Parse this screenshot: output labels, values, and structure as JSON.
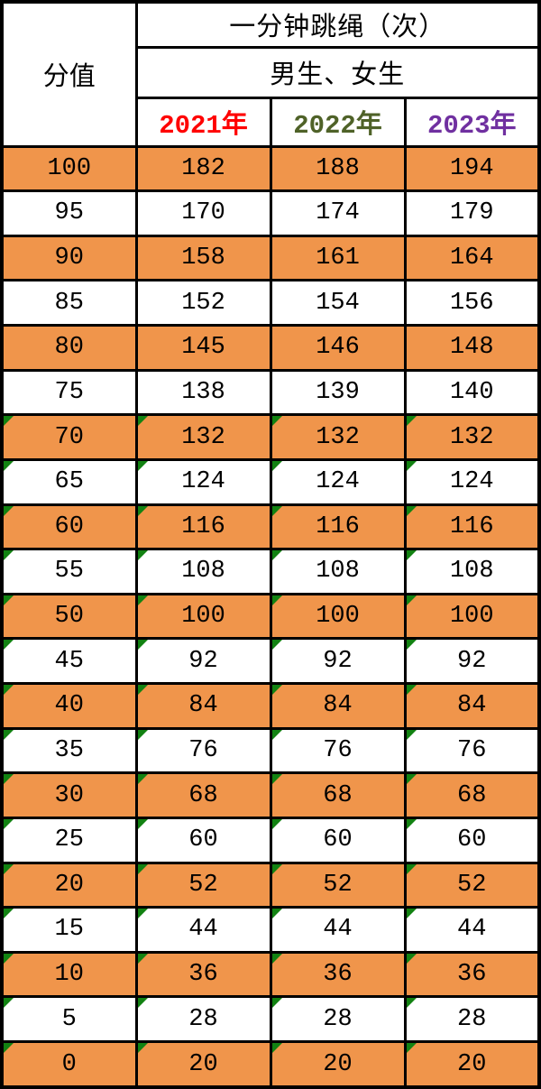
{
  "table": {
    "title": "一分钟跳绳（次）",
    "score_column_label": "分值",
    "gender_label": "男生、女生",
    "year_headers": [
      "2021年",
      "2022年",
      "2023年"
    ],
    "year_colors": [
      "#FF0000",
      "#4F6228",
      "#7030A0"
    ]
  },
  "colors": {
    "row_shaded": "#F0954B",
    "row_plain": "#FFFFFF",
    "border": "#000000",
    "text": "#000000",
    "flag_triangle": "#128212"
  },
  "chart_data": {
    "type": "table",
    "title": "一分钟跳绳（次）",
    "subtitle": "男生、女生",
    "columns": [
      "分值",
      "2021年",
      "2022年",
      "2023年"
    ],
    "rows": [
      [
        100,
        182,
        188,
        194
      ],
      [
        95,
        170,
        174,
        179
      ],
      [
        90,
        158,
        161,
        164
      ],
      [
        85,
        152,
        154,
        156
      ],
      [
        80,
        145,
        146,
        148
      ],
      [
        75,
        138,
        139,
        140
      ],
      [
        70,
        132,
        132,
        132
      ],
      [
        65,
        124,
        124,
        124
      ],
      [
        60,
        116,
        116,
        116
      ],
      [
        55,
        108,
        108,
        108
      ],
      [
        50,
        100,
        100,
        100
      ],
      [
        45,
        92,
        92,
        92
      ],
      [
        40,
        84,
        84,
        84
      ],
      [
        35,
        76,
        76,
        76
      ],
      [
        30,
        68,
        68,
        68
      ],
      [
        25,
        60,
        60,
        60
      ],
      [
        20,
        52,
        52,
        52
      ],
      [
        15,
        44,
        44,
        44
      ],
      [
        10,
        36,
        36,
        36
      ],
      [
        5,
        28,
        28,
        28
      ],
      [
        0,
        20,
        20,
        20
      ]
    ],
    "flagged_rows_start_index": 6,
    "shading": "alternate rows shaded orange, starting with first data row",
    "layout_hints": "score column spans 3 header rows; title spans 3 value columns"
  }
}
